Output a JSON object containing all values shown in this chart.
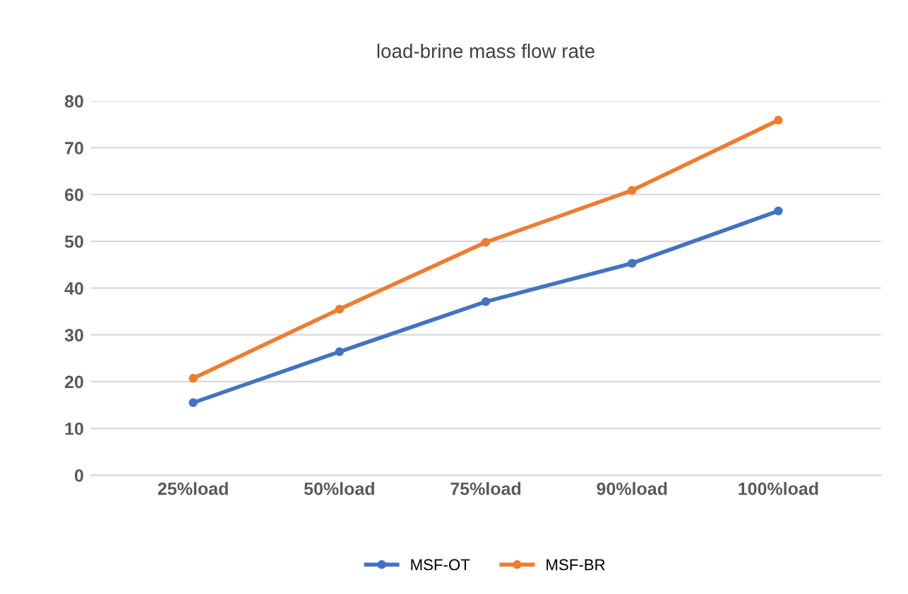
{
  "chart_data": {
    "type": "line",
    "title": "load-brine mass flow rate",
    "categories": [
      "25%load",
      "50%load",
      "75%load",
      "90%load",
      "100%load"
    ],
    "series": [
      {
        "name": "MSF-OT",
        "color": "#4472c4",
        "values": [
          15.5,
          26.4,
          37.1,
          45.3,
          56.5
        ]
      },
      {
        "name": "MSF-BR",
        "color": "#ed7d31",
        "values": [
          20.7,
          35.5,
          49.8,
          60.9,
          75.9
        ]
      }
    ],
    "ylim": [
      0,
      80
    ],
    "yticks": [
      0,
      10,
      20,
      30,
      40,
      50,
      60,
      70,
      80
    ],
    "grid": "y",
    "legend": "bottom",
    "marker": "circle",
    "line_style": "solid"
  }
}
